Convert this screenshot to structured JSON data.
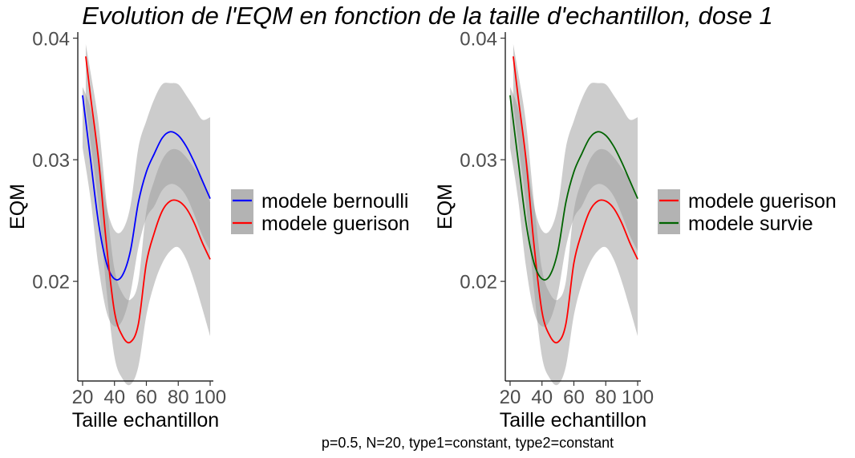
{
  "title": "Evolution de l'EQM en fonction de la taille d'echantillon, dose  1",
  "caption": "p=0.5, N=20, type1=constant, type2=constant",
  "chart_data": [
    {
      "type": "line",
      "xlabel": "Taille echantillon",
      "ylabel": "EQM",
      "xlim": [
        17,
        102
      ],
      "ylim": [
        0.0118,
        0.0405
      ],
      "xticks": [
        20,
        40,
        60,
        80,
        100
      ],
      "yticks": [
        0.02,
        0.03,
        0.04
      ],
      "ytick_labels": [
        "0.02",
        "0.03",
        "0.04"
      ],
      "legend_position": "right",
      "series": [
        {
          "name": "modele bernoulli",
          "color": "#0000ff",
          "x": [
            20,
            25,
            30,
            35,
            40,
            45,
            50,
            55,
            60,
            65,
            70,
            75,
            80,
            85,
            90,
            95,
            100
          ],
          "y": [
            0.0353,
            0.03,
            0.0248,
            0.0215,
            0.0202,
            0.0205,
            0.0225,
            0.0265,
            0.029,
            0.0305,
            0.0318,
            0.0323,
            0.032,
            0.0311,
            0.0298,
            0.0283,
            0.0268
          ],
          "band_upper": [
            0.036,
            0.0342,
            0.0305,
            0.0262,
            0.0242,
            0.0242,
            0.0262,
            0.031,
            0.0332,
            0.035,
            0.0362,
            0.0363,
            0.0362,
            0.0353,
            0.0343,
            0.0333,
            0.0335
          ],
          "band_lower": [
            0.031,
            0.0268,
            0.0212,
            0.0175,
            0.0163,
            0.0168,
            0.019,
            0.0228,
            0.0252,
            0.0262,
            0.0275,
            0.028,
            0.0278,
            0.027,
            0.0255,
            0.0238,
            0.0225
          ]
        },
        {
          "name": "modele guerison",
          "color": "#ff0000",
          "x": [
            22,
            25,
            30,
            35,
            40,
            45,
            50,
            55,
            60,
            65,
            70,
            75,
            80,
            85,
            90,
            95,
            100
          ],
          "y": [
            0.0385,
            0.0352,
            0.03,
            0.023,
            0.0175,
            0.0155,
            0.015,
            0.0165,
            0.0215,
            0.024,
            0.0258,
            0.0266,
            0.0266,
            0.026,
            0.0248,
            0.0232,
            0.0218
          ],
          "band_upper": [
            0.0395,
            0.0372,
            0.033,
            0.0265,
            0.021,
            0.019,
            0.0185,
            0.02,
            0.0258,
            0.0283,
            0.03,
            0.0308,
            0.0308,
            0.0302,
            0.0293,
            0.0283,
            0.0265
          ],
          "band_lower": [
            0.0345,
            0.0315,
            0.0263,
            0.0193,
            0.0138,
            0.012,
            0.0115,
            0.013,
            0.0172,
            0.0198,
            0.0215,
            0.0225,
            0.0228,
            0.0218,
            0.02,
            0.0178,
            0.0155
          ]
        }
      ]
    },
    {
      "type": "line",
      "xlabel": "Taille echantillon",
      "ylabel": "EQM",
      "xlim": [
        17,
        102
      ],
      "ylim": [
        0.0118,
        0.0405
      ],
      "xticks": [
        20,
        40,
        60,
        80,
        100
      ],
      "yticks": [
        0.02,
        0.03,
        0.04
      ],
      "ytick_labels": [
        "0.02",
        "0.03",
        "0.04"
      ],
      "legend_position": "right",
      "series": [
        {
          "name": "modele guerison",
          "color": "#ff0000",
          "x": [
            22,
            25,
            30,
            35,
            40,
            45,
            50,
            55,
            60,
            65,
            70,
            75,
            80,
            85,
            90,
            95,
            100
          ],
          "y": [
            0.0385,
            0.0352,
            0.03,
            0.023,
            0.0175,
            0.0155,
            0.015,
            0.0165,
            0.0215,
            0.024,
            0.0258,
            0.0266,
            0.0266,
            0.026,
            0.0248,
            0.0232,
            0.0218
          ],
          "band_upper": [
            0.0395,
            0.0372,
            0.033,
            0.0265,
            0.021,
            0.019,
            0.0185,
            0.02,
            0.0258,
            0.0283,
            0.03,
            0.0308,
            0.0308,
            0.0302,
            0.0293,
            0.0283,
            0.0265
          ],
          "band_lower": [
            0.0345,
            0.0315,
            0.0263,
            0.0193,
            0.0138,
            0.012,
            0.0115,
            0.013,
            0.0172,
            0.0198,
            0.0215,
            0.0225,
            0.0228,
            0.0218,
            0.02,
            0.0178,
            0.0155
          ]
        },
        {
          "name": "modele survie",
          "color": "#006400",
          "x": [
            20,
            25,
            30,
            35,
            40,
            45,
            50,
            55,
            60,
            65,
            70,
            75,
            80,
            85,
            90,
            95,
            100
          ],
          "y": [
            0.0353,
            0.03,
            0.0248,
            0.0215,
            0.0202,
            0.0205,
            0.0225,
            0.0265,
            0.029,
            0.0305,
            0.0318,
            0.0323,
            0.032,
            0.0311,
            0.0298,
            0.0283,
            0.0268
          ],
          "band_upper": [
            0.036,
            0.0342,
            0.0305,
            0.0262,
            0.0242,
            0.0242,
            0.0262,
            0.031,
            0.0332,
            0.035,
            0.0362,
            0.0363,
            0.0362,
            0.0353,
            0.0343,
            0.0333,
            0.0335
          ],
          "band_lower": [
            0.031,
            0.0268,
            0.0212,
            0.0175,
            0.0163,
            0.0168,
            0.019,
            0.0228,
            0.0252,
            0.0262,
            0.0275,
            0.028,
            0.0278,
            0.027,
            0.0255,
            0.0238,
            0.0225
          ]
        }
      ]
    }
  ]
}
